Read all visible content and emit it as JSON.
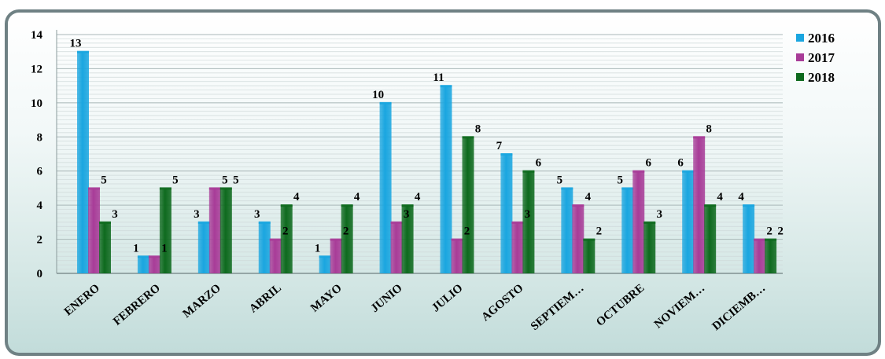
{
  "chart_data": {
    "type": "bar",
    "title": "",
    "xlabel": "",
    "ylabel": "",
    "ylim": [
      0,
      14
    ],
    "yticks": [
      0,
      2,
      4,
      6,
      8,
      10,
      12,
      14
    ],
    "grid": true,
    "legend_position": "right",
    "categories": [
      "ENERO",
      "FEBRERO",
      "MARZO",
      "ABRIL",
      "MAYO",
      "JUNIO",
      "JULIO",
      "AGOSTO",
      "SEPTIEM…",
      "OCTUBRE",
      "NOVIEM…",
      "DICIEMB…"
    ],
    "series": [
      {
        "name": "2016",
        "color": "#1aa6e0",
        "values": [
          13,
          1,
          3,
          3,
          1,
          10,
          11,
          7,
          5,
          5,
          6,
          4
        ]
      },
      {
        "name": "2017",
        "color": "#a83c98",
        "values": [
          5,
          1,
          5,
          2,
          2,
          3,
          2,
          3,
          4,
          6,
          8,
          2
        ]
      },
      {
        "name": "2018",
        "color": "#0e6a1e",
        "values": [
          3,
          5,
          5,
          4,
          4,
          4,
          8,
          6,
          2,
          3,
          4,
          2
        ]
      }
    ]
  }
}
